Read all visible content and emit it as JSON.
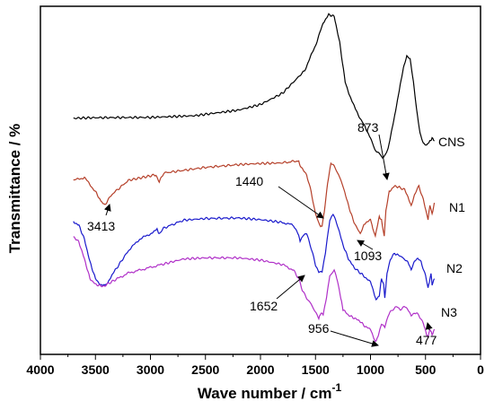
{
  "chart_data": {
    "type": "line",
    "xlabel": "Wave number / cm",
    "xlabel_superscript": "-1",
    "ylabel": "Transmittance / %",
    "xlim": [
      4000,
      0
    ],
    "x_reversed": true,
    "x_ticks": [
      4000,
      3500,
      3000,
      2500,
      2000,
      1500,
      1000,
      500,
      0
    ],
    "x_tick_labels": [
      "4000",
      "3500",
      "3000",
      "2500",
      "2000",
      "1500",
      "1000",
      "500",
      "0"
    ],
    "y_ticks_shown": false,
    "grid": false,
    "colors": {
      "CNS": "#000000",
      "N1": "#b5402a",
      "N2": "#1a1acc",
      "N3": "#b030c8"
    },
    "series": [
      {
        "name": "CNS",
        "color": "#000000",
        "points": [
          [
            3700,
            0.855
          ],
          [
            3500,
            0.865
          ],
          [
            3000,
            0.87
          ],
          [
            2600,
            0.9
          ],
          [
            2200,
            1.0
          ],
          [
            2000,
            1.1
          ],
          [
            1800,
            1.3
          ],
          [
            1600,
            1.7
          ],
          [
            1500,
            2.15
          ],
          [
            1430,
            2.55
          ],
          [
            1380,
            2.7
          ],
          [
            1330,
            2.67
          ],
          [
            1280,
            2.2
          ],
          [
            1230,
            1.5
          ],
          [
            1180,
            1.2
          ],
          [
            1120,
            0.95
          ],
          [
            1050,
            0.7
          ],
          [
            1000,
            0.5
          ],
          [
            960,
            0.3
          ],
          [
            930,
            0.25
          ],
          [
            890,
            0.15
          ],
          [
            870,
            0.18
          ],
          [
            840,
            0.3
          ],
          [
            780,
            0.9
          ],
          [
            730,
            1.45
          ],
          [
            700,
            1.75
          ],
          [
            670,
            1.95
          ],
          [
            640,
            1.9
          ],
          [
            610,
            1.5
          ],
          [
            580,
            1.0
          ],
          [
            550,
            0.6
          ],
          [
            520,
            0.42
          ],
          [
            490,
            0.38
          ],
          [
            460,
            0.45
          ],
          [
            440,
            0.5
          ],
          [
            420,
            0.45
          ]
        ]
      },
      {
        "name": "N1",
        "color": "#b5402a",
        "points": [
          [
            3700,
            -0.25
          ],
          [
            3600,
            -0.2
          ],
          [
            3500,
            -0.45
          ],
          [
            3450,
            -0.62
          ],
          [
            3413,
            -0.68
          ],
          [
            3350,
            -0.5
          ],
          [
            3200,
            -0.25
          ],
          [
            2950,
            -0.15
          ],
          [
            2920,
            -0.28
          ],
          [
            2880,
            -0.12
          ],
          [
            2500,
            -0.02
          ],
          [
            2200,
            0.03
          ],
          [
            2000,
            0.05
          ],
          [
            1800,
            0.06
          ],
          [
            1652,
            0.1
          ],
          [
            1640,
            0.0
          ],
          [
            1580,
            -0.15
          ],
          [
            1540,
            -0.45
          ],
          [
            1500,
            -0.85
          ],
          [
            1460,
            -1.05
          ],
          [
            1440,
            -1.07
          ],
          [
            1420,
            -0.8
          ],
          [
            1390,
            -0.3
          ],
          [
            1360,
            0.05
          ],
          [
            1330,
            0.0
          ],
          [
            1290,
            -0.15
          ],
          [
            1250,
            -0.35
          ],
          [
            1200,
            -0.7
          ],
          [
            1150,
            -1.0
          ],
          [
            1093,
            -1.2
          ],
          [
            1060,
            -1.05
          ],
          [
            1000,
            -0.95
          ],
          [
            980,
            -1.1
          ],
          [
            956,
            -1.25
          ],
          [
            920,
            -0.9
          ],
          [
            900,
            -0.95
          ],
          [
            875,
            -1.25
          ],
          [
            860,
            -0.8
          ],
          [
            830,
            -0.45
          ],
          [
            780,
            -0.35
          ],
          [
            730,
            -0.38
          ],
          [
            690,
            -0.42
          ],
          [
            660,
            -0.55
          ],
          [
            630,
            -0.7
          ],
          [
            600,
            -0.5
          ],
          [
            560,
            -0.35
          ],
          [
            520,
            -0.6
          ],
          [
            490,
            -0.85
          ],
          [
            477,
            -0.95
          ],
          [
            460,
            -0.7
          ],
          [
            440,
            -0.85
          ],
          [
            420,
            -0.65
          ]
        ]
      },
      {
        "name": "N2",
        "color": "#1a1acc",
        "points": [
          [
            3700,
            -0.99
          ],
          [
            3650,
            -1.05
          ],
          [
            3600,
            -1.3
          ],
          [
            3550,
            -1.7
          ],
          [
            3500,
            -2.0
          ],
          [
            3450,
            -2.12
          ],
          [
            3413,
            -2.12
          ],
          [
            3380,
            -2.05
          ],
          [
            3320,
            -1.85
          ],
          [
            3200,
            -1.5
          ],
          [
            3100,
            -1.3
          ],
          [
            3000,
            -1.2
          ],
          [
            2940,
            -1.12
          ],
          [
            2920,
            -1.2
          ],
          [
            2880,
            -1.1
          ],
          [
            2700,
            -0.96
          ],
          [
            2500,
            -0.93
          ],
          [
            2200,
            -0.92
          ],
          [
            2000,
            -0.95
          ],
          [
            1800,
            -1.0
          ],
          [
            1700,
            -1.05
          ],
          [
            1660,
            -1.2
          ],
          [
            1640,
            -1.32
          ],
          [
            1610,
            -1.22
          ],
          [
            1580,
            -1.2
          ],
          [
            1540,
            -1.45
          ],
          [
            1500,
            -1.75
          ],
          [
            1470,
            -1.87
          ],
          [
            1440,
            -1.87
          ],
          [
            1410,
            -1.55
          ],
          [
            1370,
            -0.95
          ],
          [
            1340,
            -0.85
          ],
          [
            1300,
            -1.05
          ],
          [
            1250,
            -1.4
          ],
          [
            1200,
            -1.65
          ],
          [
            1150,
            -1.8
          ],
          [
            1093,
            -1.9
          ],
          [
            1060,
            -1.95
          ],
          [
            1000,
            -2.05
          ],
          [
            970,
            -2.25
          ],
          [
            950,
            -2.37
          ],
          [
            920,
            -2.3
          ],
          [
            900,
            -2.0
          ],
          [
            880,
            -2.1
          ],
          [
            870,
            -2.35
          ],
          [
            850,
            -1.9
          ],
          [
            820,
            -1.65
          ],
          [
            780,
            -1.55
          ],
          [
            730,
            -1.6
          ],
          [
            690,
            -1.65
          ],
          [
            660,
            -1.7
          ],
          [
            630,
            -1.85
          ],
          [
            600,
            -1.7
          ],
          [
            570,
            -1.65
          ],
          [
            540,
            -1.7
          ],
          [
            500,
            -1.95
          ],
          [
            477,
            -2.17
          ],
          [
            465,
            -2.05
          ],
          [
            450,
            -1.9
          ],
          [
            440,
            -2.12
          ],
          [
            420,
            -2.0
          ]
        ]
      },
      {
        "name": "N3",
        "color": "#b030c8",
        "points": [
          [
            3700,
            -1.25
          ],
          [
            3650,
            -1.35
          ],
          [
            3600,
            -1.65
          ],
          [
            3550,
            -2.0
          ],
          [
            3500,
            -2.1
          ],
          [
            3450,
            -2.13
          ],
          [
            3413,
            -2.12
          ],
          [
            3300,
            -2.0
          ],
          [
            3200,
            -1.9
          ],
          [
            3100,
            -1.85
          ],
          [
            3000,
            -1.8
          ],
          [
            2900,
            -1.75
          ],
          [
            2700,
            -1.65
          ],
          [
            2500,
            -1.63
          ],
          [
            2200,
            -1.63
          ],
          [
            2000,
            -1.67
          ],
          [
            1800,
            -1.75
          ],
          [
            1700,
            -1.85
          ],
          [
            1652,
            -2.0
          ],
          [
            1620,
            -2.2
          ],
          [
            1580,
            -2.35
          ],
          [
            1540,
            -2.45
          ],
          [
            1500,
            -2.6
          ],
          [
            1470,
            -2.72
          ],
          [
            1450,
            -2.6
          ],
          [
            1430,
            -2.65
          ],
          [
            1400,
            -2.35
          ],
          [
            1370,
            -1.95
          ],
          [
            1330,
            -1.85
          ],
          [
            1300,
            -2.05
          ],
          [
            1270,
            -2.35
          ],
          [
            1250,
            -2.55
          ],
          [
            1200,
            -2.65
          ],
          [
            1150,
            -2.7
          ],
          [
            1100,
            -2.75
          ],
          [
            1050,
            -2.85
          ],
          [
            1000,
            -2.9
          ],
          [
            970,
            -3.05
          ],
          [
            956,
            -3.13
          ],
          [
            930,
            -3.02
          ],
          [
            900,
            -2.8
          ],
          [
            870,
            -2.85
          ],
          [
            840,
            -2.65
          ],
          [
            800,
            -2.55
          ],
          [
            760,
            -2.5
          ],
          [
            730,
            -2.55
          ],
          [
            690,
            -2.5
          ],
          [
            660,
            -2.55
          ],
          [
            630,
            -2.65
          ],
          [
            600,
            -2.6
          ],
          [
            560,
            -2.65
          ],
          [
            520,
            -2.8
          ],
          [
            490,
            -3.0
          ],
          [
            477,
            -3.05
          ],
          [
            460,
            -2.9
          ],
          [
            440,
            -3.0
          ],
          [
            420,
            -2.9
          ]
        ]
      }
    ],
    "series_labels": [
      "CNS",
      "N1",
      "N2",
      "N3"
    ],
    "annotations": [
      {
        "text": "873",
        "arrow_x": 873,
        "arrow_y": 0.2
      },
      {
        "text": "1440",
        "arrow_x": 1440,
        "arrow_y": -1.07
      },
      {
        "text": "3413",
        "arrow_x": 3413,
        "arrow_y": -0.68
      },
      {
        "text": "1093",
        "arrow_x": 1093,
        "arrow_y": -1.2
      },
      {
        "text": "1652",
        "arrow_x": 1652,
        "arrow_y": -2.0
      },
      {
        "text": "956",
        "arrow_x": 956,
        "arrow_y": -3.13
      },
      {
        "text": "477",
        "arrow_x": 477,
        "arrow_y": -3.05
      }
    ]
  }
}
